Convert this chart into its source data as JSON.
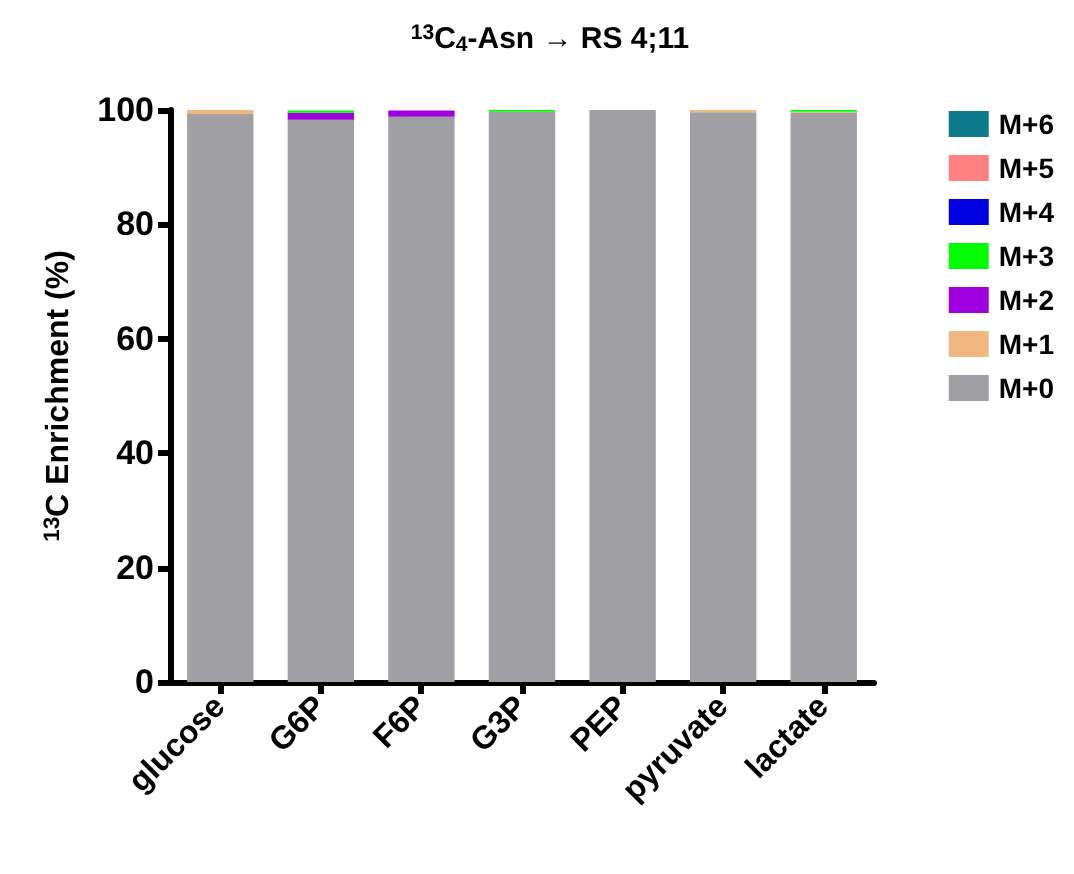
{
  "chart_data": {
    "type": "bar",
    "title": "$^{13}$C$_{4}$-Asn → RS 4;11",
    "ylabel": "$^{13}$C Enrichment (%)",
    "categories": [
      "glucose",
      "G6P",
      "F6P",
      "G3P",
      "PEP",
      "pyruvate",
      "lactate"
    ],
    "stacked": true,
    "ylim": [
      0,
      100
    ],
    "yticks": [
      0,
      20,
      40,
      60,
      80,
      100
    ],
    "grid": false,
    "legend": "right",
    "series": [
      {
        "name": "M+0",
        "color": "#a0a0a4",
        "values": [
          99.3,
          98.3,
          98.8,
          99.7,
          100,
          99.6,
          99.5
        ]
      },
      {
        "name": "M+1",
        "color": "#f0b880",
        "values": [
          0.7,
          null,
          0,
          0,
          0,
          0.4,
          0.2
        ]
      },
      {
        "name": "M+2",
        "color": "#a000e0",
        "values": [
          0,
          1.2,
          1.1,
          0,
          0,
          0,
          0
        ]
      },
      {
        "name": "M+3",
        "color": "#00ff00",
        "values": [
          0,
          0.4,
          null,
          0.3,
          0,
          0,
          0.3
        ]
      },
      {
        "name": "M+4",
        "color": "#0000e0",
        "values": [
          0,
          0,
          0,
          0,
          0,
          0,
          0
        ]
      },
      {
        "name": "M+5",
        "color": "#ff8080",
        "values": [
          0,
          0,
          0,
          0,
          0,
          0,
          0
        ]
      },
      {
        "name": "M+6",
        "color": "#0e7a8c",
        "values": [
          0,
          0,
          0,
          0,
          0,
          0,
          0
        ]
      }
    ]
  }
}
